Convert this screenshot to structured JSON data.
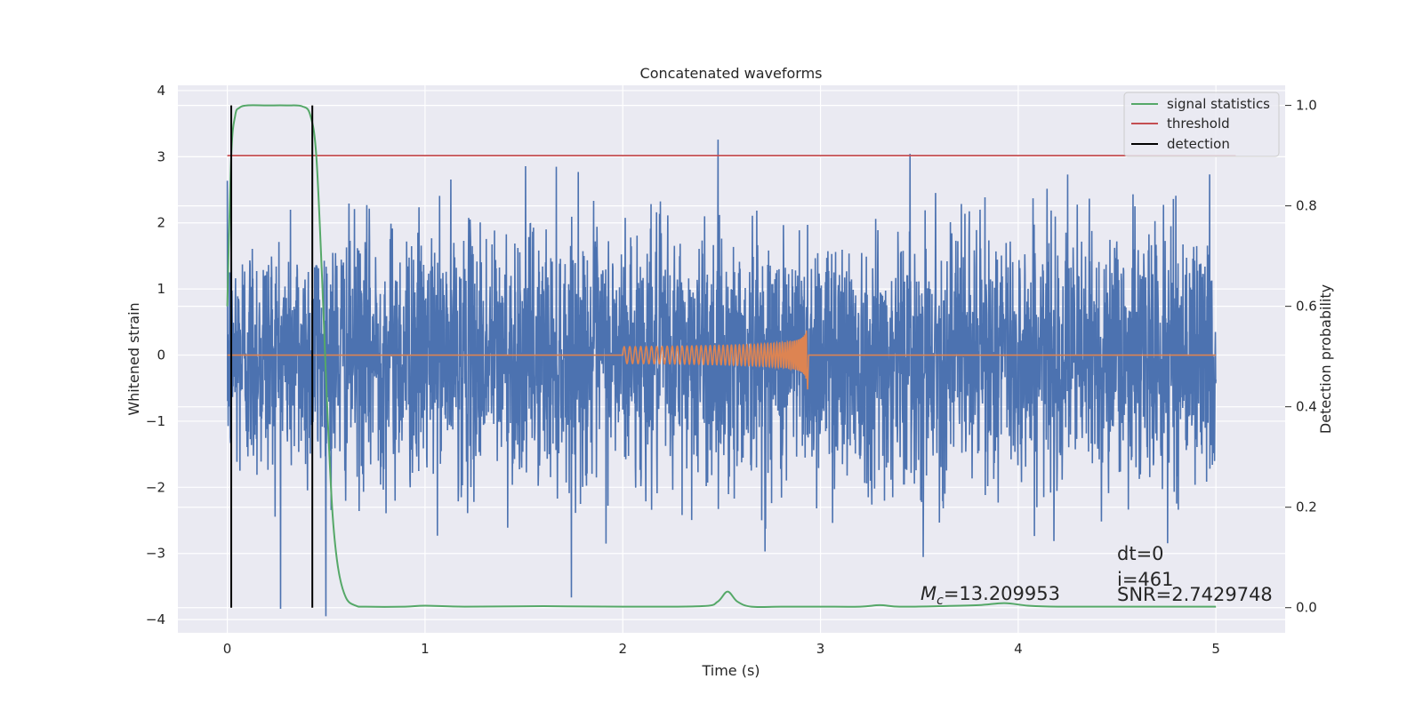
{
  "chart_data": {
    "type": "line",
    "title": "Concatenated waveforms",
    "xlabel": "Time (s)",
    "ylabel_left": "Whitened strain",
    "ylabel_right": "Detection probability",
    "xlim": [
      -0.25,
      5.35
    ],
    "ylim_left": [
      -4.2,
      4.08
    ],
    "ylim_right": [
      -0.05,
      1.04
    ],
    "xticks": [
      0,
      1,
      2,
      3,
      4,
      5
    ],
    "xtick_labels": [
      "0",
      "1",
      "2",
      "3",
      "4",
      "5"
    ],
    "yticks_left": [
      -4,
      -3,
      -2,
      -1,
      0,
      1,
      2,
      3,
      4
    ],
    "ytick_labels_left": [
      "−4",
      "−3",
      "−2",
      "−1",
      "0",
      "1",
      "2",
      "3",
      "4"
    ],
    "yticks_right": [
      0.0,
      0.2,
      0.4,
      0.6,
      0.8,
      1.0
    ],
    "ytick_labels_right": [
      "0.0",
      "0.2",
      "0.4",
      "0.6",
      "0.8",
      "1.0"
    ],
    "grid": true,
    "legend_position": "upper right",
    "legend": [
      {
        "label": "signal statistics",
        "color": "#55a868"
      },
      {
        "label": "threshold",
        "color": "#c44e52"
      },
      {
        "label": "detection",
        "color": "#000000"
      }
    ],
    "series": [
      {
        "role": "strain",
        "axis": "left",
        "color": "#4c72b0",
        "x_range": [
          0,
          5
        ],
        "amplitude_std": 0.95
      },
      {
        "role": "template",
        "axis": "left",
        "color": "#dd8452",
        "chirp_start": 2.0,
        "chirp_end": 2.93,
        "peak_amplitude": 0.38
      },
      {
        "role": "signal statistics",
        "axis": "right",
        "color": "#55a868",
        "x": [
          0,
          0.02,
          0.04,
          0.06,
          0.1,
          0.2,
          0.3,
          0.38,
          0.42,
          0.45,
          0.48,
          0.5,
          0.53,
          0.56,
          0.6,
          0.65,
          0.7,
          0.9,
          1.0,
          1.2,
          1.6,
          2.0,
          2.4,
          2.48,
          2.53,
          2.58,
          2.65,
          2.8,
          3.0,
          3.2,
          3.3,
          3.4,
          3.6,
          3.8,
          3.93,
          4.05,
          4.2,
          4.6,
          5.0
        ],
        "y": [
          0.6,
          0.9,
          0.98,
          0.995,
          1.0,
          1.0,
          1.0,
          0.998,
          0.98,
          0.9,
          0.65,
          0.45,
          0.2,
          0.08,
          0.02,
          0.004,
          0.002,
          0.002,
          0.004,
          0.002,
          0.003,
          0.002,
          0.003,
          0.012,
          0.032,
          0.012,
          0.002,
          0.002,
          0.002,
          0.002,
          0.005,
          0.002,
          0.003,
          0.005,
          0.009,
          0.004,
          0.002,
          0.002,
          0.002
        ]
      },
      {
        "role": "threshold",
        "axis": "right",
        "color": "#c44e52",
        "x": [
          0,
          5.1
        ],
        "y": [
          0.9,
          0.9
        ]
      }
    ],
    "detections": [
      0.02,
      0.43
    ],
    "annotations": {
      "mc_symbol": "M",
      "mc_subscript": "c",
      "mc_value": "=13.209953",
      "dt": "dt=0",
      "i": "i=461",
      "snr": "SNR=2.7429748"
    }
  }
}
